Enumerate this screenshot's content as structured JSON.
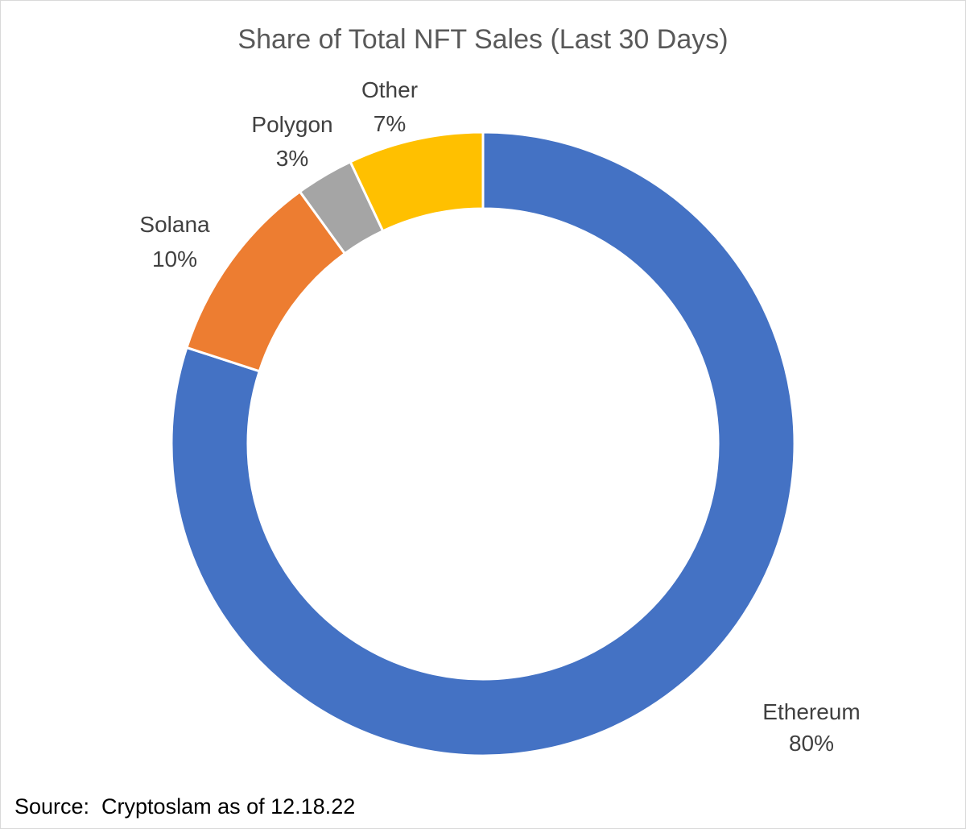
{
  "chart_data": {
    "type": "pie",
    "variant": "donut",
    "title": "Share of Total NFT Sales (Last 30 Days)",
    "categories": [
      "Ethereum",
      "Solana",
      "Polygon",
      "Other"
    ],
    "values": [
      80,
      10,
      3,
      7
    ],
    "value_labels": [
      "80%",
      "10%",
      "3%",
      "7%"
    ],
    "colors": [
      "#4472C4",
      "#ED7D31",
      "#A5A5A5",
      "#FFC000"
    ],
    "start_angle_deg": 0,
    "direction": "clockwise",
    "legend": "none"
  },
  "footer": {
    "source": "Source:  Cryptoslam as of 12.18.22"
  }
}
